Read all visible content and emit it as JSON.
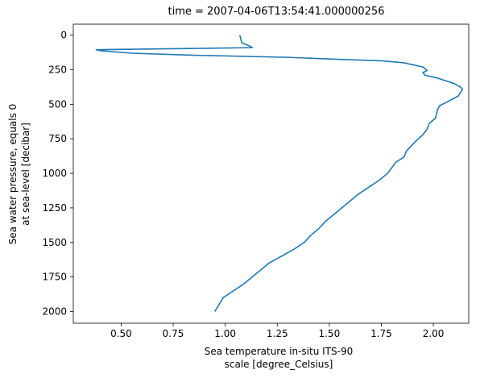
{
  "chart_data": {
    "type": "line",
    "title": "time = 2007-04-06T13:54:41.000000256",
    "xlabel_lines": [
      "Sea temperature in-situ ITS-90",
      "scale [degree_Celsius]"
    ],
    "ylabel_lines": [
      "Sea water pressure, equals 0",
      "at sea-level [decibar]"
    ],
    "xlim": [
      0.27,
      2.17
    ],
    "ylim": [
      2085,
      -80
    ],
    "y_inverted": true,
    "grid": false,
    "x_ticks": [
      0.5,
      0.75,
      1.0,
      1.25,
      1.5,
      1.75,
      2.0
    ],
    "x_tick_labels": [
      "0.50",
      "0.75",
      "1.00",
      "1.25",
      "1.50",
      "1.75",
      "2.00"
    ],
    "y_ticks": [
      0,
      250,
      500,
      750,
      1000,
      1250,
      1500,
      1750,
      2000
    ],
    "y_tick_labels": [
      "0",
      "250",
      "500",
      "750",
      "1000",
      "1250",
      "1500",
      "1750",
      "2000"
    ],
    "line_color": "#1f77b4",
    "series": [
      {
        "x": [
          1.07,
          1.075,
          1.08,
          1.12,
          1.13,
          0.38,
          0.4,
          0.55,
          0.85,
          1.3,
          1.55,
          1.75,
          1.86,
          1.89,
          1.95,
          1.97,
          1.95,
          1.96,
          2.02,
          2.06,
          2.1,
          2.13,
          2.14,
          2.12,
          2.07,
          2.03,
          2.02,
          2.01,
          1.98,
          1.97,
          1.95,
          1.92,
          1.87,
          1.86,
          1.82,
          1.8,
          1.79,
          1.78,
          1.74,
          1.69,
          1.64,
          1.6,
          1.54,
          1.48,
          1.45,
          1.41,
          1.38,
          1.33,
          1.27,
          1.21,
          1.17,
          1.13,
          1.09,
          1.04,
          0.99,
          0.95
        ],
        "y": [
          0,
          30,
          55,
          80,
          90,
          105,
          112,
          130,
          145,
          160,
          175,
          185,
          200,
          210,
          230,
          255,
          270,
          290,
          310,
          330,
          350,
          375,
          390,
          440,
          480,
          510,
          540,
          600,
          640,
          680,
          720,
          760,
          840,
          880,
          920,
          960,
          980,
          1000,
          1050,
          1100,
          1150,
          1200,
          1275,
          1350,
          1400,
          1450,
          1500,
          1550,
          1600,
          1650,
          1700,
          1750,
          1800,
          1850,
          1900,
          2000
        ]
      }
    ]
  }
}
